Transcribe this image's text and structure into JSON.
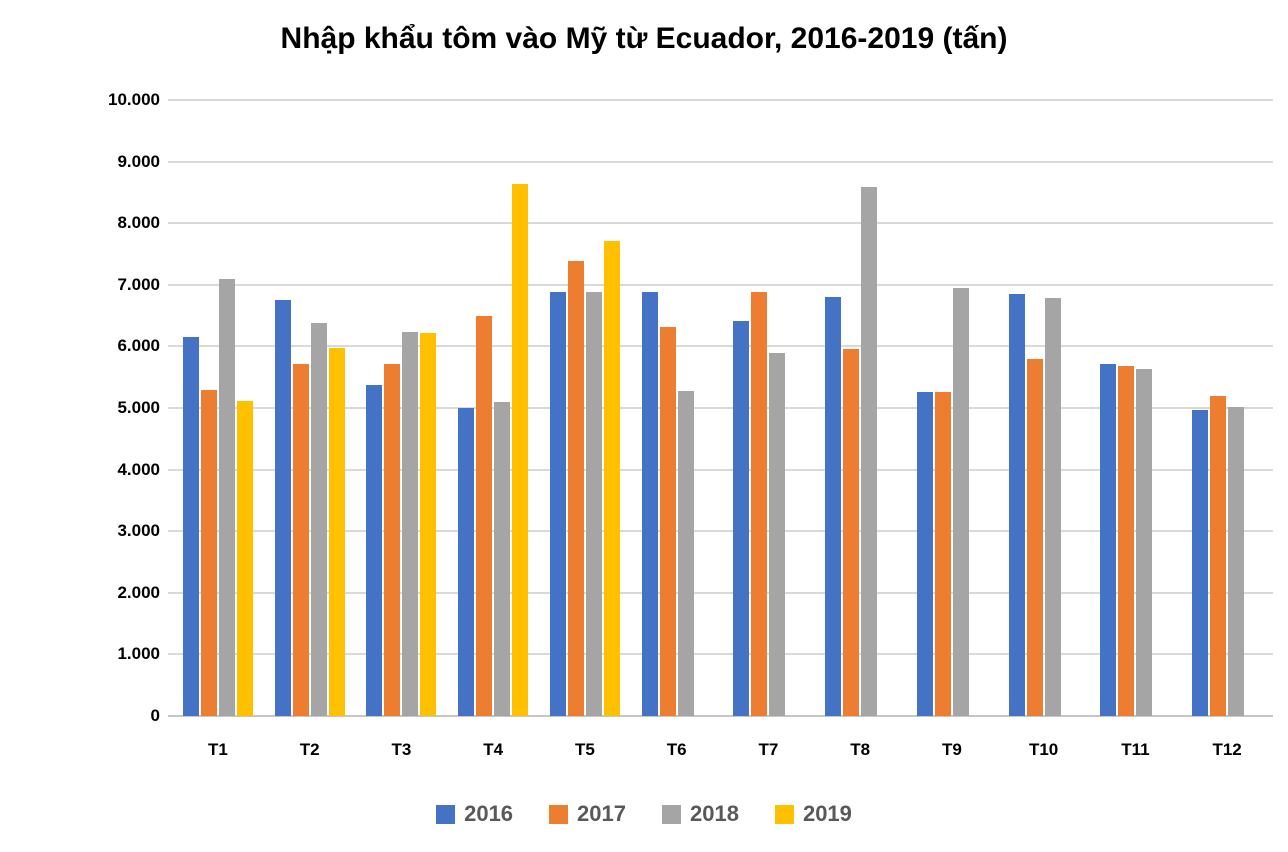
{
  "chart_data": {
    "type": "bar",
    "title": "Nhập khẩu tôm vào Mỹ từ Ecuador, 2016-2019 (tấn)",
    "xlabel": "",
    "ylabel": "",
    "categories": [
      "T1",
      "T2",
      "T3",
      "T4",
      "T5",
      "T6",
      "T7",
      "T8",
      "T9",
      "T10",
      "T11",
      "T12"
    ],
    "series": [
      {
        "name": "2016",
        "color": "#4472C4",
        "values": [
          6150,
          6760,
          5370,
          5000,
          6890,
          6890,
          6420,
          6810,
          5260,
          6850,
          5710,
          4970
        ]
      },
      {
        "name": "2017",
        "color": "#ED7D31",
        "values": [
          5300,
          5710,
          5720,
          6490,
          7390,
          6310,
          6880,
          5960,
          5260,
          5790,
          5680,
          5190
        ]
      },
      {
        "name": "2018",
        "color": "#A5A5A5",
        "values": [
          7100,
          6380,
          6230,
          5100,
          6890,
          5280,
          5900,
          8580,
          6950,
          6780,
          5640,
          5010
        ]
      },
      {
        "name": "2019",
        "color": "#FFC000",
        "values": [
          5120,
          5970,
          6210,
          8630,
          7710,
          null,
          null,
          null,
          null,
          null,
          null,
          null
        ]
      }
    ],
    "ylim": [
      0,
      10000
    ],
    "ytick_step": 1000,
    "ytick_labels": [
      "0",
      "1.000",
      "2.000",
      "3.000",
      "4.000",
      "5.000",
      "6.000",
      "7.000",
      "8.000",
      "9.000",
      "10.000"
    ],
    "grid": true,
    "legend_position": "bottom",
    "gridline_color": "#D9D9D9",
    "axis_line_color": "#C6C6C6",
    "title_color": "#000000",
    "tick_label_color": "#000000",
    "legend_text_color": "#595959"
  }
}
